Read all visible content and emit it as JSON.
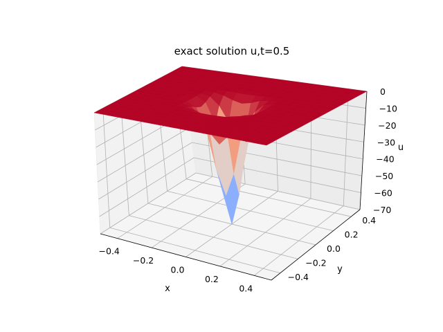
{
  "chart_data": {
    "type": "surface3d",
    "title": "exact solution u,t=0.5",
    "xlabel": "x",
    "ylabel": "y",
    "zlabel": "u",
    "x_ticks": [
      "−0.4",
      "−0.2",
      "0.0",
      "0.2",
      "0.4"
    ],
    "y_ticks": [
      "−0.4",
      "−0.2",
      "0.0",
      "0.2",
      "0.4"
    ],
    "z_ticks": [
      "0",
      "−10",
      "−20",
      "−30",
      "−40",
      "−50",
      "−60",
      "−70"
    ],
    "xlim": [
      -0.5,
      0.5
    ],
    "ylim": [
      -0.5,
      0.5
    ],
    "zlim": [
      -70,
      0
    ],
    "grid": true,
    "colormap": "coolwarm",
    "surface": {
      "description": "Flat plane at u=0 with a sharp well centered at (0,0)",
      "baseline": 0,
      "minimum": -70,
      "center": [
        0,
        0
      ],
      "well_width": 0.09,
      "grid_points": 21
    }
  }
}
